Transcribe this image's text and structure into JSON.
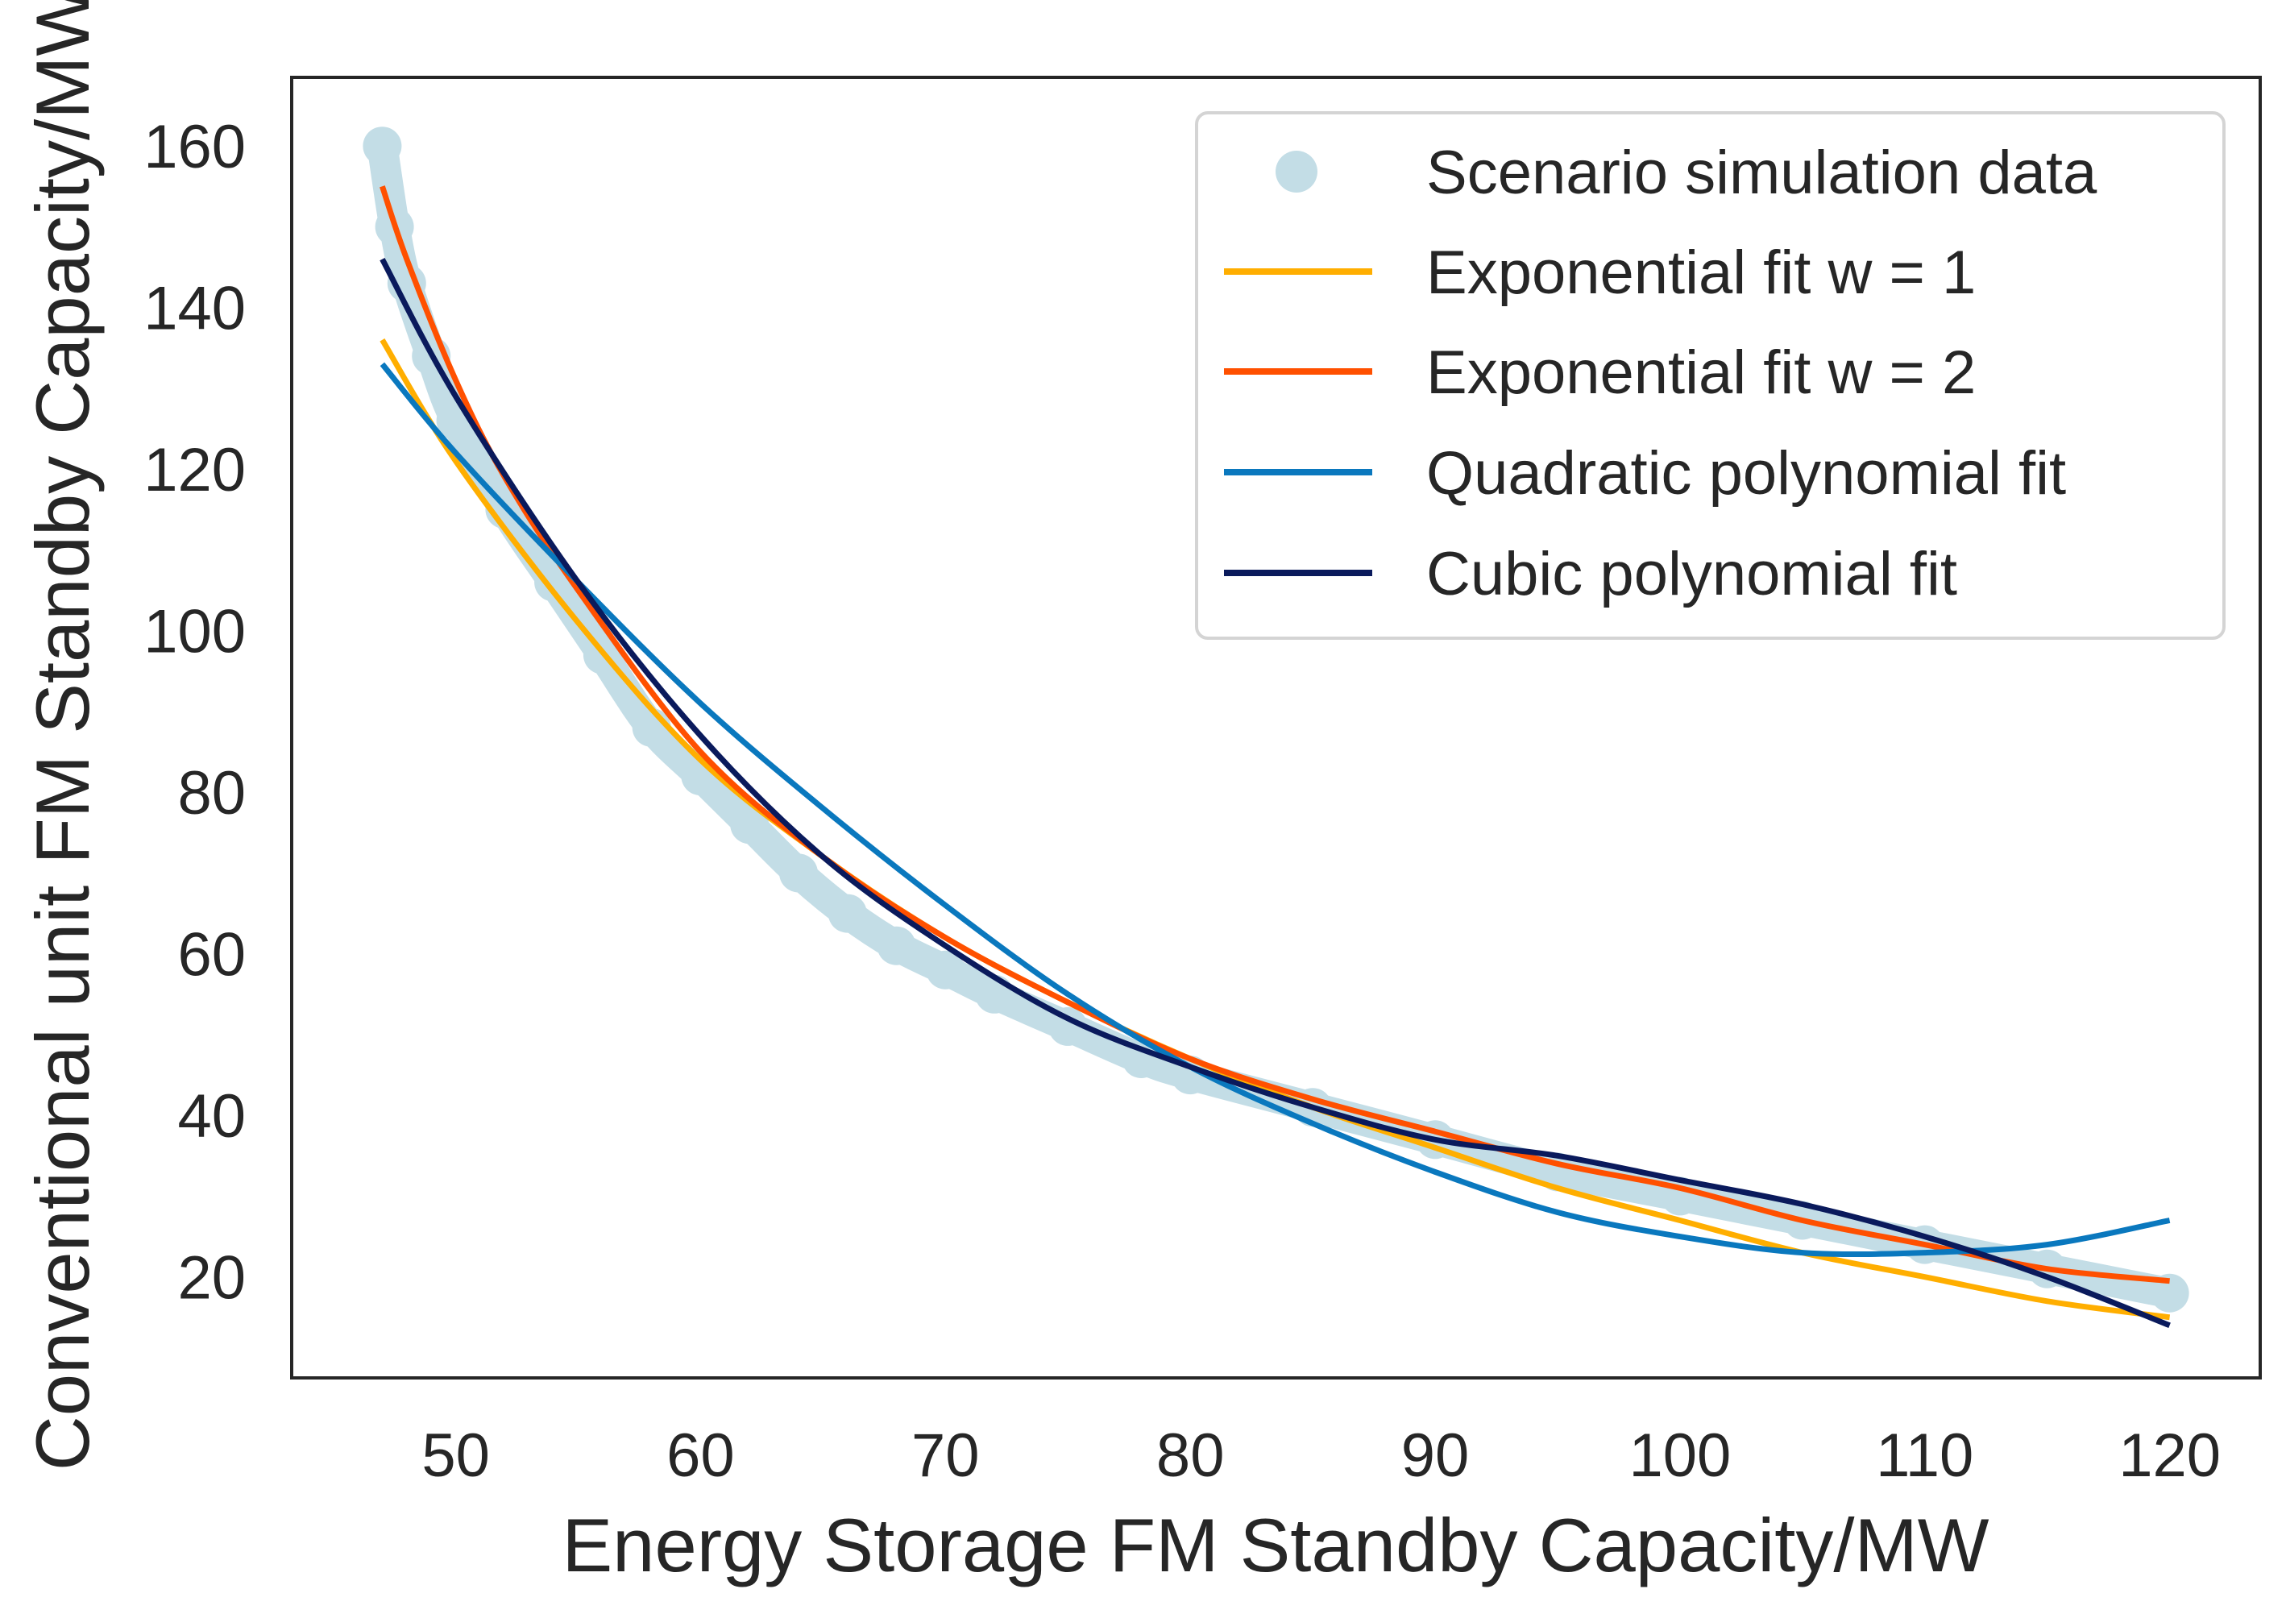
{
  "chart_data": {
    "type": "line",
    "title": "",
    "xlabel": "Energy Storage FM Standby Capacity/MW",
    "ylabel": "Conventional unit FM Standby Capacity/MW",
    "xlim": [
      43.3,
      123.7
    ],
    "ylim": [
      7.5,
      168.5
    ],
    "xticks": [
      50,
      60,
      70,
      80,
      90,
      100,
      110,
      120
    ],
    "yticks": [
      20,
      40,
      60,
      80,
      100,
      120,
      140,
      160
    ],
    "grid": false,
    "legend_position": "top-right",
    "series": [
      {
        "name": "Scenario simulation data",
        "kind": "scatter",
        "color": "#c3dde6",
        "x": [
          47,
          47.5,
          48,
          49,
          50,
          52,
          54,
          56,
          58,
          60,
          62,
          64,
          66,
          68,
          70,
          72,
          75,
          78,
          80,
          85,
          90,
          95,
          100,
          105,
          110,
          115,
          120
        ],
        "y": [
          160,
          150,
          143,
          134,
          126,
          115,
          106,
          97,
          88,
          82,
          76,
          70,
          65,
          61,
          58,
          55,
          51,
          47,
          45,
          41,
          37,
          33,
          30,
          27,
          24,
          21,
          18
        ]
      },
      {
        "name": "Exponential fit w = 1",
        "kind": "line",
        "color": "#ffae00",
        "x": [
          47,
          50,
          55,
          60,
          65,
          70,
          75,
          80,
          85,
          90,
          95,
          100,
          105,
          110,
          115,
          120
        ],
        "y": [
          136,
          121,
          101,
          84,
          72,
          62,
          54,
          47,
          41,
          36,
          31,
          27,
          23,
          20,
          17,
          15
        ]
      },
      {
        "name": "Exponential fit w = 2",
        "kind": "line",
        "color": "#ff5000",
        "x": [
          47,
          48,
          50,
          52,
          55,
          60,
          65,
          70,
          75,
          80,
          85,
          90,
          95,
          100,
          105,
          110,
          115,
          120
        ],
        "y": [
          155,
          146,
          131,
          119,
          105,
          85,
          72,
          62,
          54,
          47,
          42,
          38,
          34,
          31,
          27,
          24,
          21,
          19.5
        ]
      },
      {
        "name": "Quadratic polynomial fit",
        "kind": "line",
        "color": "#0a78be",
        "x": [
          47,
          50,
          55,
          60,
          65,
          70,
          75,
          80,
          85,
          90,
          95,
          100,
          105,
          110,
          115,
          120
        ],
        "y": [
          133,
          122,
          106,
          91,
          78,
          66,
          55,
          46,
          39,
          33,
          28,
          25,
          23,
          23,
          24,
          27
        ]
      },
      {
        "name": "Cubic polynomial fit",
        "kind": "line",
        "color": "#0a1a5c",
        "x": [
          47,
          50,
          55,
          60,
          65,
          70,
          75,
          80,
          85,
          90,
          95,
          100,
          105,
          110,
          115,
          120
        ],
        "y": [
          146,
          129,
          106,
          87,
          72,
          61,
          52,
          46,
          41,
          37,
          35,
          32,
          29,
          25,
          20,
          14
        ]
      }
    ]
  }
}
